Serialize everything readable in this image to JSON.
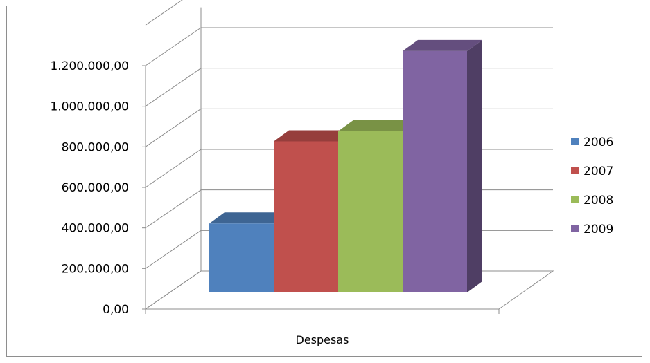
{
  "chart_data": {
    "type": "bar",
    "subtype": "3d-clustered-column",
    "categories": [
      "Despesas"
    ],
    "series": [
      {
        "name": "2006",
        "values": [
          340000
        ],
        "color": "#4F81BD"
      },
      {
        "name": "2007",
        "values": [
          745000
        ],
        "color": "#C0504D"
      },
      {
        "name": "2008",
        "values": [
          795000
        ],
        "color": "#9BBB59"
      },
      {
        "name": "2009",
        "values": [
          1190000
        ],
        "color": "#8064A2"
      }
    ],
    "yticks": [
      "0,00",
      "200.000,00",
      "400.000,00",
      "600.000,00",
      "800.000,00",
      "1.000.000,00",
      "1.200.000,00"
    ],
    "ylim": [
      0,
      1300000
    ],
    "grid": true,
    "legend_position": "right"
  }
}
